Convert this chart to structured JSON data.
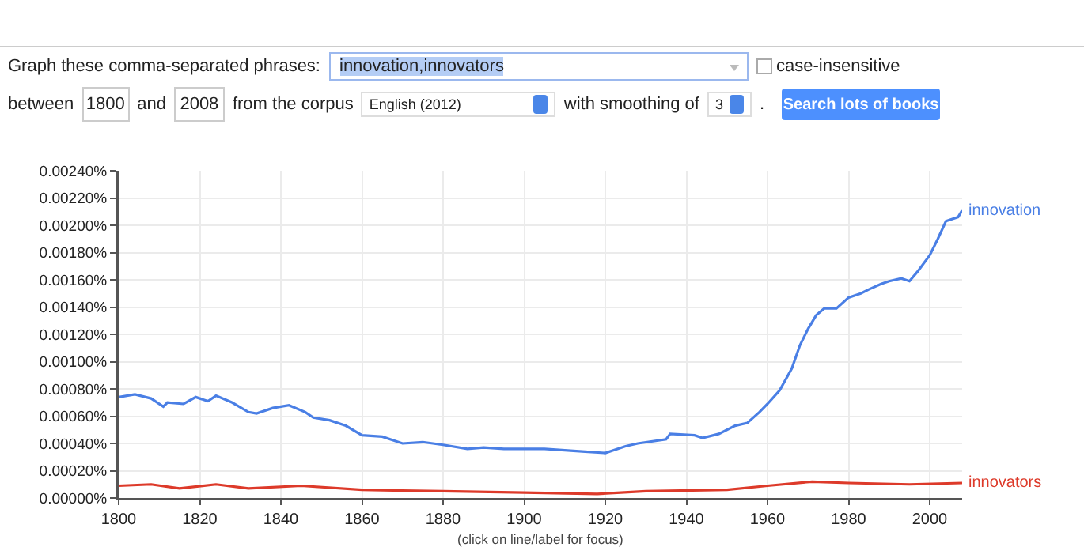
{
  "chart_data": {
    "type": "line",
    "x": [
      1800,
      1804,
      1808,
      1811,
      1812,
      1816,
      1819,
      1822,
      1824,
      1828,
      1832,
      1834,
      1838,
      1840,
      1842,
      1846,
      1848,
      1852,
      1856,
      1860,
      1865,
      1870,
      1875,
      1880,
      1886,
      1890,
      1895,
      1900,
      1905,
      1910,
      1915,
      1920,
      1925,
      1928,
      1935,
      1936,
      1942,
      1944,
      1948,
      1952,
      1955,
      1958,
      1960,
      1963,
      1966,
      1968,
      1970,
      1972,
      1974,
      1977,
      1980,
      1983,
      1985,
      1988,
      1990,
      1993,
      1995,
      1997,
      2000,
      2002,
      2004,
      2007,
      2008
    ],
    "series": [
      {
        "name": "innovation",
        "color": "#4a7fe5",
        "values": [
          0.00074,
          0.00076,
          0.00073,
          0.00067,
          0.0007,
          0.00069,
          0.00074,
          0.00071,
          0.00075,
          0.0007,
          0.00063,
          0.00062,
          0.00066,
          0.00067,
          0.00068,
          0.00063,
          0.00059,
          0.00057,
          0.00053,
          0.00046,
          0.00045,
          0.0004,
          0.00041,
          0.00039,
          0.00036,
          0.00037,
          0.00036,
          0.00036,
          0.00036,
          0.00035,
          0.00034,
          0.00033,
          0.00038,
          0.0004,
          0.00043,
          0.00047,
          0.00046,
          0.00044,
          0.00047,
          0.00053,
          0.00055,
          0.00063,
          0.00069,
          0.00079,
          0.00095,
          0.00112,
          0.00124,
          0.00134,
          0.00139,
          0.00139,
          0.00147,
          0.0015,
          0.00153,
          0.00157,
          0.00159,
          0.00161,
          0.00159,
          0.00166,
          0.00178,
          0.0019,
          0.00203,
          0.00206,
          0.00211
        ]
      },
      {
        "name": "innovators",
        "color": "#dd3a2a",
        "x": [
          1800,
          1808,
          1815,
          1824,
          1832,
          1845,
          1860,
          1880,
          1900,
          1918,
          1930,
          1950,
          1960,
          1971,
          1980,
          1995,
          2008
        ],
        "values": [
          9e-05,
          0.0001,
          7e-05,
          0.0001,
          7e-05,
          9e-05,
          6e-05,
          5e-05,
          4e-05,
          3e-05,
          5e-05,
          6e-05,
          9e-05,
          0.00012,
          0.00011,
          0.0001,
          0.00011
        ]
      }
    ],
    "xlim": [
      1800,
      2008
    ],
    "xticks": [
      1800,
      1820,
      1840,
      1860,
      1880,
      1900,
      1920,
      1940,
      1960,
      1980,
      2000
    ],
    "ylim": [
      0,
      0.0024
    ],
    "yticks": [
      {
        "value": 0,
        "label": "0.00000%"
      },
      {
        "value": 0.0002,
        "label": "0.00020%"
      },
      {
        "value": 0.0004,
        "label": "0.00040%"
      },
      {
        "value": 0.0006,
        "label": "0.00060%"
      },
      {
        "value": 0.0008,
        "label": "0.00080%"
      },
      {
        "value": 0.001,
        "label": "0.00100%"
      },
      {
        "value": 0.0012,
        "label": "0.00120%"
      },
      {
        "value": 0.0014,
        "label": "0.00140%"
      },
      {
        "value": 0.0016,
        "label": "0.00160%"
      },
      {
        "value": 0.0018,
        "label": "0.00180%"
      },
      {
        "value": 0.002,
        "label": "0.00200%"
      },
      {
        "value": 0.0022,
        "label": "0.00220%"
      },
      {
        "value": 0.0024,
        "label": "0.00240%"
      }
    ],
    "grid": true,
    "marker": "none",
    "line_style": "solid",
    "annotations": [
      "Graph these comma-separated phrases:",
      "innovation,innovators",
      "case-insensitive",
      "between",
      "1800",
      "and",
      "2008",
      "from the corpus",
      "English (2012)",
      "with smoothing of",
      "3",
      ".",
      "Search lots of books",
      "(click on line/label for focus)"
    ]
  }
}
